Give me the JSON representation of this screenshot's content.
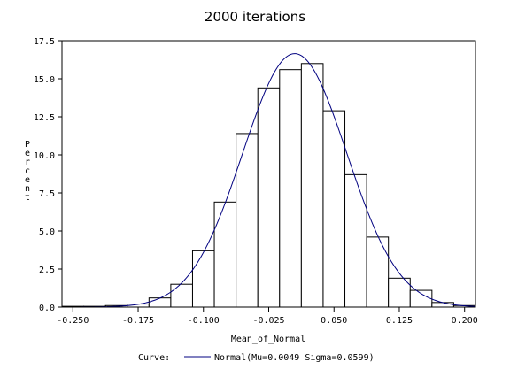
{
  "chart_data": {
    "type": "bar",
    "title": "2000 iterations",
    "xlabel": "Mean_of_Normal",
    "ylabel": "Percent",
    "xlim": [
      -0.2625,
      0.2125
    ],
    "ylim": [
      0,
      17.5
    ],
    "bin_width": 0.025,
    "bin_centers": [
      -0.25,
      -0.225,
      -0.2,
      -0.175,
      -0.15,
      -0.125,
      -0.1,
      -0.075,
      -0.05,
      -0.025,
      0.0,
      0.025,
      0.05,
      0.075,
      0.1,
      0.125,
      0.15,
      0.175,
      0.2
    ],
    "values": [
      0.05,
      0.05,
      0.1,
      0.2,
      0.6,
      1.5,
      3.7,
      6.9,
      11.4,
      14.4,
      15.6,
      16.0,
      12.9,
      8.7,
      4.6,
      1.9,
      1.1,
      0.3,
      0.1
    ],
    "x_ticks": [
      "-0.250",
      "-0.175",
      "-0.100",
      "-0.025",
      "0.050",
      "0.125",
      "0.200"
    ],
    "x_tick_values": [
      -0.25,
      -0.175,
      -0.1,
      -0.025,
      0.05,
      0.125,
      0.2
    ],
    "y_ticks": [
      "0.0",
      "2.5",
      "5.0",
      "7.5",
      "10.0",
      "12.5",
      "15.0",
      "17.5"
    ],
    "y_tick_values": [
      0,
      2.5,
      5,
      7.5,
      10,
      12.5,
      15,
      17.5
    ],
    "curve": {
      "mu": 0.0049,
      "sigma": 0.0599,
      "color": "#000080"
    },
    "legend": {
      "label": "Curve:",
      "entry": "Normal(Mu=0.0049 Sigma=0.0599)",
      "placement": "bottom-center"
    },
    "grid": false
  }
}
